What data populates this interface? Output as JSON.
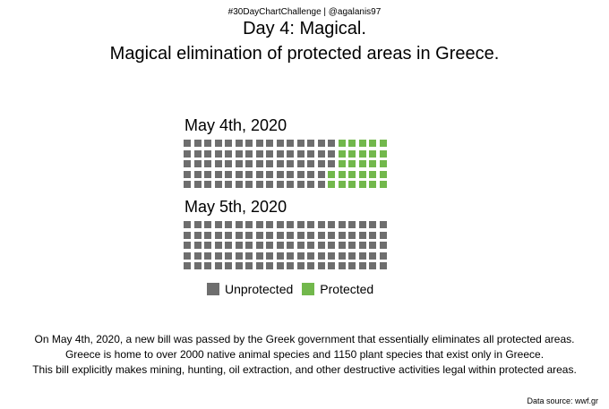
{
  "header": {
    "hashtag": "#30DayChartChallenge | @agalanis97",
    "title": "Day 4: Magical.",
    "subtitle": "Magical elimination of protected areas in Greece."
  },
  "chart_data": [
    {
      "type": "waffle",
      "title": "May 4th, 2020",
      "rows": 5,
      "columns": 20,
      "categories": [
        "Unprotected",
        "Protected"
      ],
      "values": [
        73,
        27
      ],
      "colors": [
        "#6e6e6e",
        "#72b84c"
      ]
    },
    {
      "type": "waffle",
      "title": "May 5th, 2020",
      "rows": 5,
      "columns": 20,
      "categories": [
        "Unprotected",
        "Protected"
      ],
      "values": [
        100,
        0
      ],
      "colors": [
        "#6e6e6e",
        "#72b84c"
      ]
    }
  ],
  "legend": {
    "items": [
      {
        "label": "Unprotected",
        "color": "#6e6e6e"
      },
      {
        "label": "Protected",
        "color": "#72b84c"
      }
    ]
  },
  "caption": {
    "line1": "On May 4th, 2020, a new bill was passed by the Greek government that essentially eliminates all protected areas.",
    "line2": "Greece is home to over 2000 native animal species and 1150 plant species that exist only in Greece.",
    "line3": "This bill explicitly makes mining, hunting, oil extraction, and other destructive activities legal within protected areas."
  },
  "source": "Data source: wwf.gr"
}
